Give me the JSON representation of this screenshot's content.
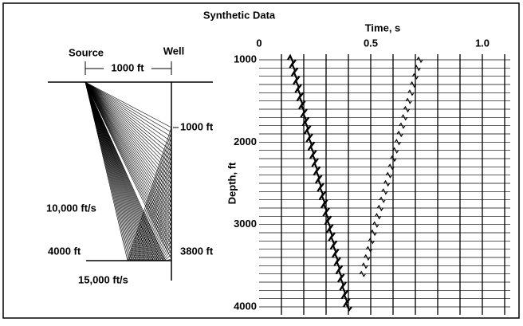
{
  "title": "Synthetic Data",
  "model": {
    "source": "Source",
    "well": "Well",
    "offset": "1000 ft",
    "top_depth": "1000 ft",
    "upper_velocity": "10,000 ft/s",
    "interface_depth": "4000 ft",
    "bottom_depth": "3800 ft",
    "lower_velocity": "15,000 ft/s"
  },
  "section": {
    "x_label": "Time, s",
    "y_label": "Depth, ft",
    "x_ticks": [
      "0",
      "0.5",
      "1.0"
    ],
    "y_ticks": [
      "1000",
      "2000",
      "3000",
      "4000"
    ]
  }
}
